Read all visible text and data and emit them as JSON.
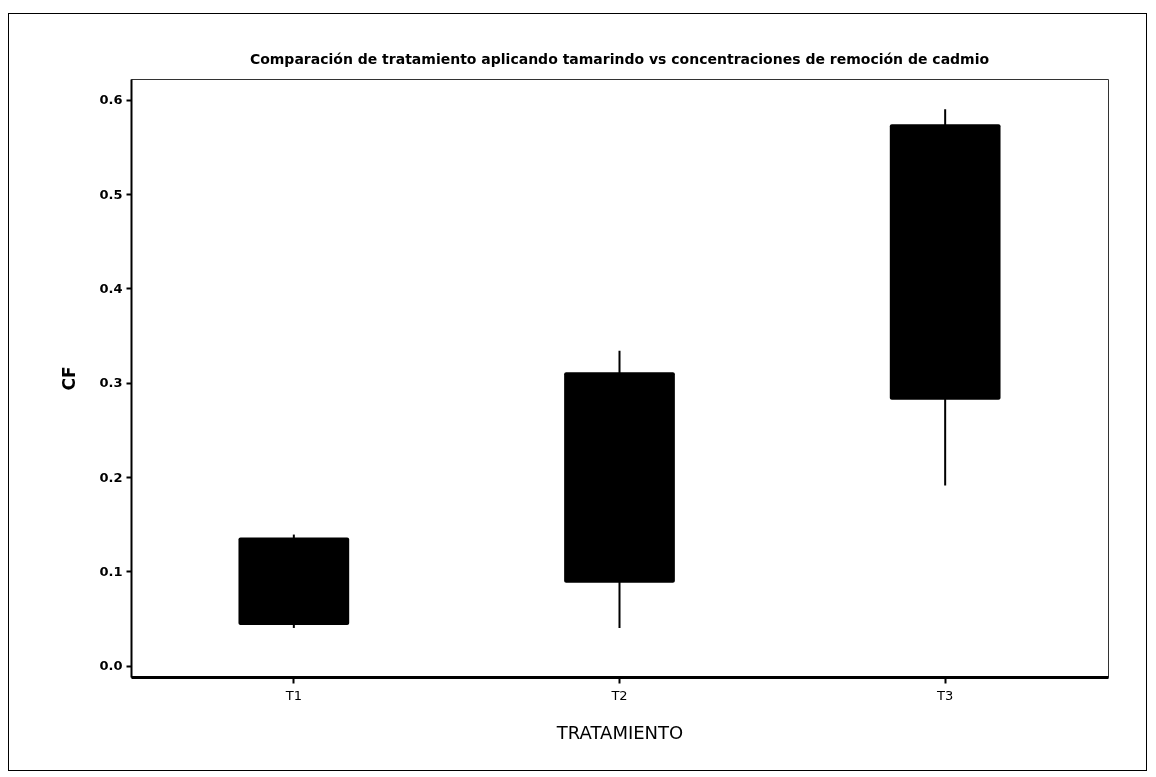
{
  "chart_data": {
    "type": "box",
    "title": "Comparación de tratamiento aplicando tamarindo vs concentraciones de remoción de cadmio",
    "xlabel": "TRATAMIENTO",
    "ylabel": "CF",
    "categories": [
      "T1",
      "T2",
      "T3"
    ],
    "series": [
      {
        "color": "#000000",
        "boxes": [
          {
            "low": 0.04,
            "q1": 0.043,
            "median": null,
            "q3": 0.136,
            "high": 0.139
          },
          {
            "low": 0.04,
            "q1": 0.088,
            "median": null,
            "q3": 0.311,
            "high": 0.334
          },
          {
            "low": 0.191,
            "q1": 0.282,
            "median": null,
            "q3": 0.574,
            "high": 0.59
          }
        ]
      }
    ],
    "ylim": [
      -0.012,
      0.622
    ],
    "yticks": [
      {
        "value": 0,
        "label": "0.0"
      },
      0.1,
      0.2,
      0.3,
      0.4,
      0.5,
      0.6
    ]
  }
}
